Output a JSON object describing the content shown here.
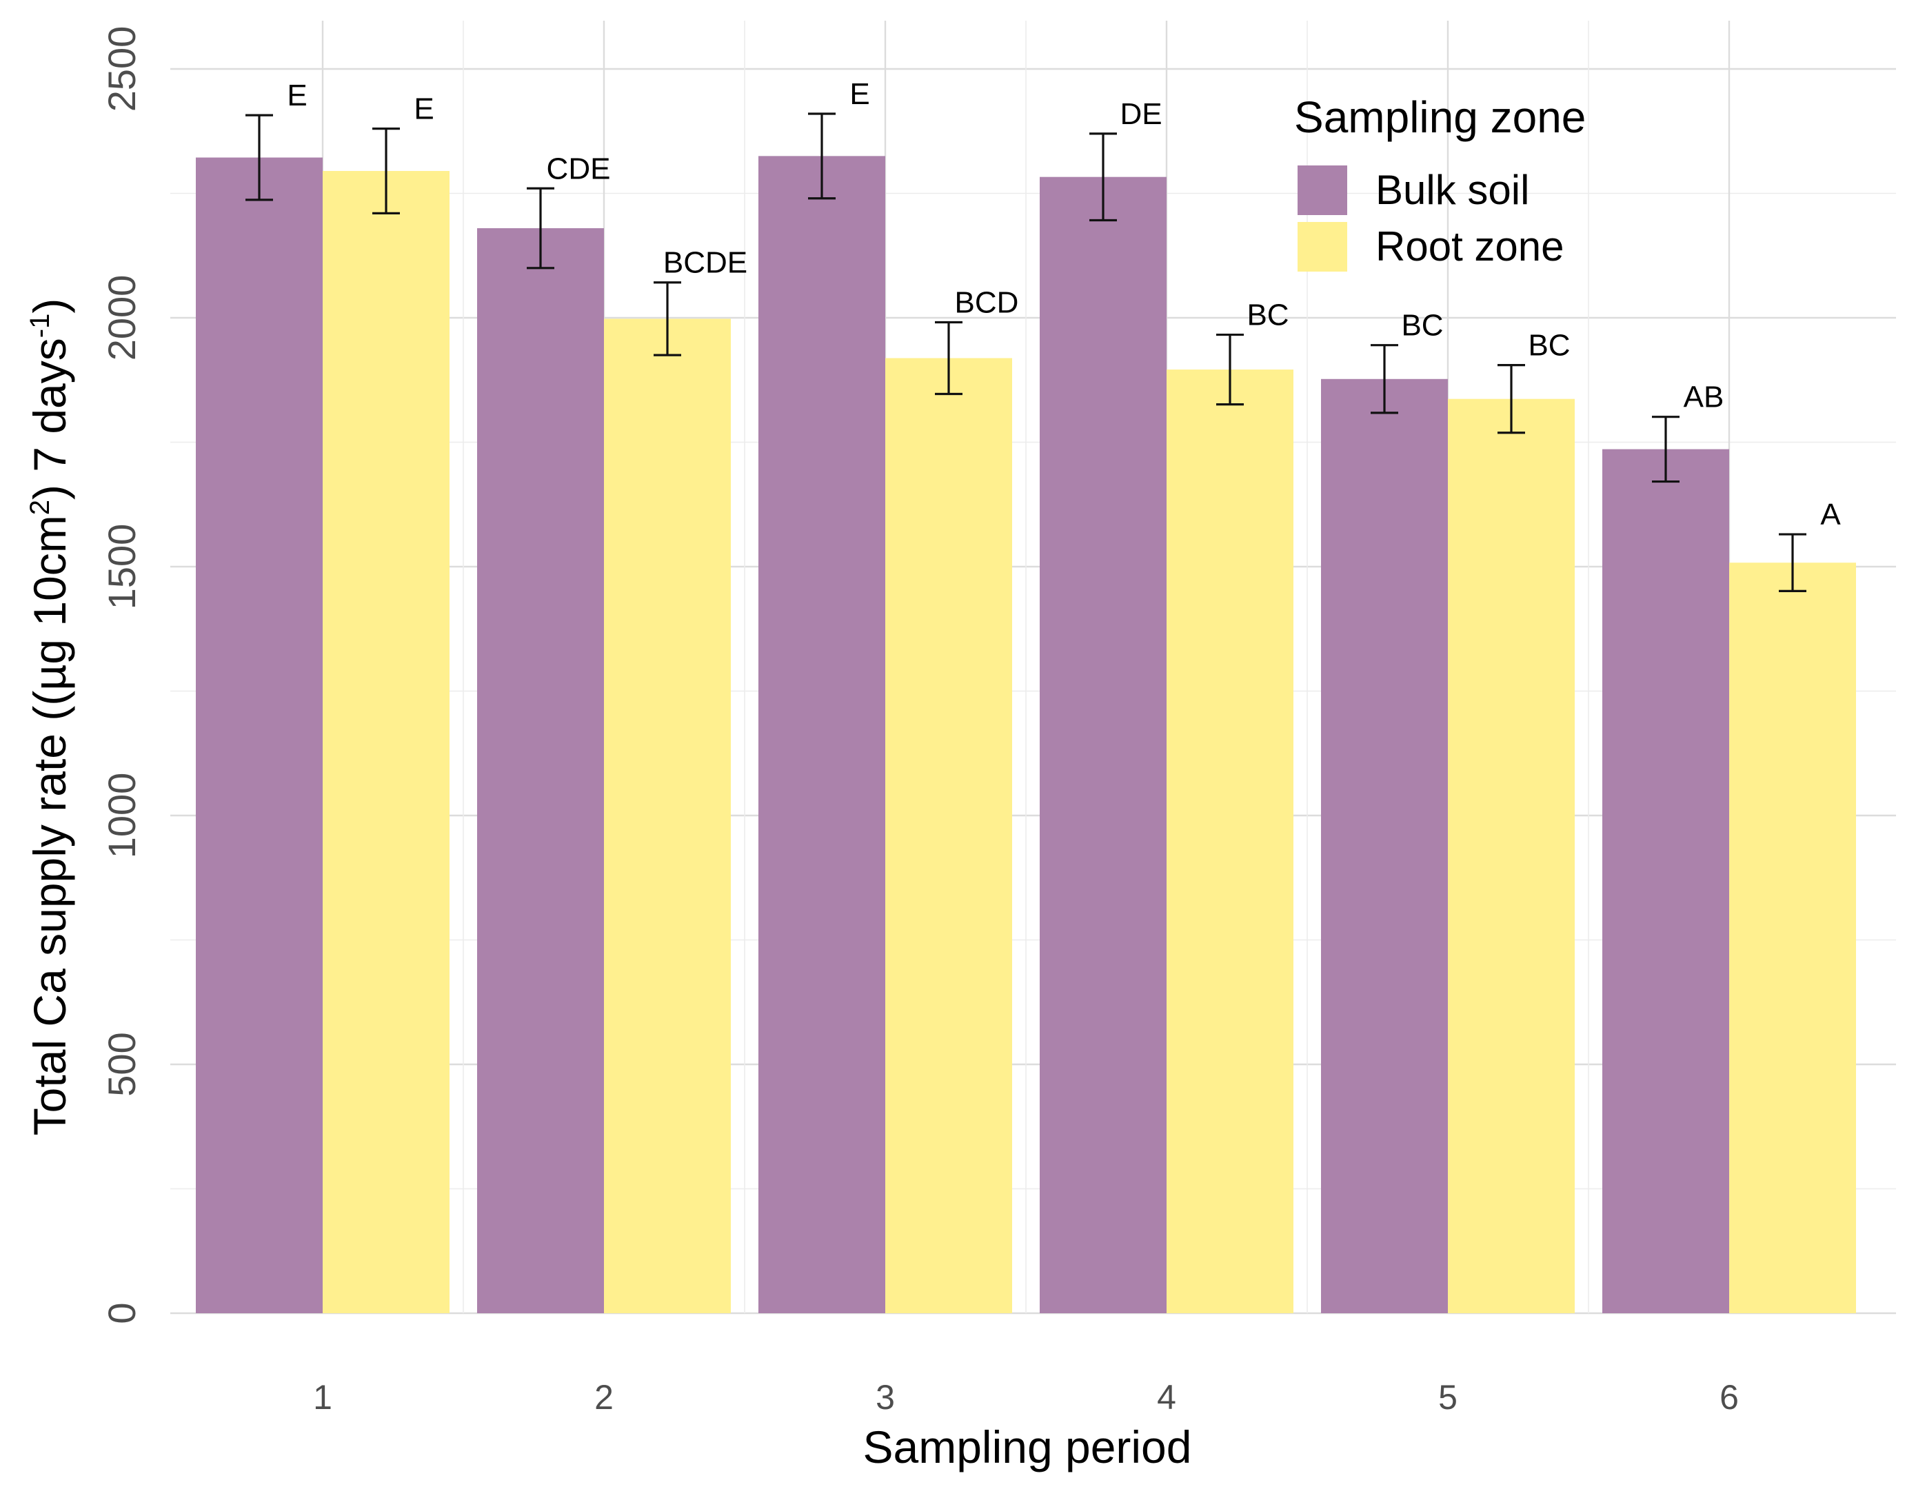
{
  "chart_data": {
    "type": "bar",
    "xlabel": "Sampling period",
    "ylabel_parts": [
      "Total Ca supply rate ((µg 10cm",
      "2",
      ") 7 days",
      "-1",
      ")"
    ],
    "categories": [
      "1",
      "2",
      "3",
      "4",
      "5",
      "6"
    ],
    "ylim": [
      0,
      2500
    ],
    "yticks": [
      "0",
      "500",
      "1000",
      "1500",
      "2000",
      "2500"
    ],
    "grid": true,
    "legend": {
      "title": "Sampling zone",
      "position": "top-right"
    },
    "series": [
      {
        "name": "Bulk soil",
        "color": "#ab82ab",
        "values": [
          2322,
          2180,
          2325,
          2283,
          1877,
          1736
        ],
        "error": [
          85,
          80,
          85,
          87,
          68,
          65
        ],
        "letters": [
          "E",
          "CDE",
          "E",
          "DE",
          "BC",
          "AB"
        ]
      },
      {
        "name": "Root zone",
        "color": "#fff08f",
        "values": [
          2295,
          1998,
          1919,
          1896,
          1837,
          1508
        ],
        "error": [
          85,
          73,
          72,
          70,
          68,
          57
        ],
        "letters": [
          "E",
          "BCDE",
          "BCD",
          "BC",
          "BC",
          "A"
        ]
      }
    ]
  }
}
